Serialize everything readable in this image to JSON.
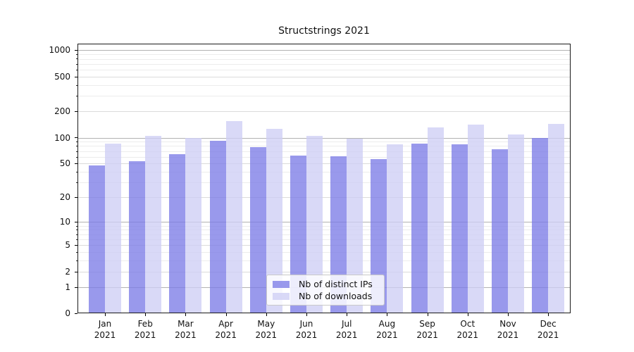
{
  "chart_data": {
    "type": "bar",
    "title": "Structstrings 2021",
    "categories": [
      "Jan",
      "Feb",
      "Mar",
      "Apr",
      "May",
      "Jun",
      "Jul",
      "Aug",
      "Sep",
      "Oct",
      "Nov",
      "Dec"
    ],
    "year_label": "2021",
    "series": [
      {
        "name": "Nb of distinct IPs",
        "color": "rgba(124,124,231,0.78)",
        "values": [
          48,
          53,
          65,
          92,
          78,
          62,
          61,
          56,
          85,
          83,
          73,
          99
        ]
      },
      {
        "name": "Nb of downloads",
        "color": "rgba(206,206,245,0.78)",
        "values": [
          85,
          104,
          100,
          155,
          126,
          105,
          97,
          84,
          130,
          141,
          108,
          145
        ]
      }
    ],
    "y_scale": "log1p",
    "ylim": [
      0,
      1150
    ],
    "y_ticks_major": [
      0,
      1,
      2,
      5,
      10,
      20,
      50,
      100,
      200,
      500,
      1000
    ],
    "y_ticks_minor": [
      3,
      4,
      6,
      7,
      8,
      9,
      30,
      40,
      60,
      70,
      80,
      90,
      300,
      400,
      600,
      700,
      800,
      900
    ],
    "grid": true,
    "legend_position": "lower center",
    "grid_colors": {
      "decade": "#b2b2b2",
      "major": "#dbdbdb",
      "minor": "#ececec"
    }
  }
}
